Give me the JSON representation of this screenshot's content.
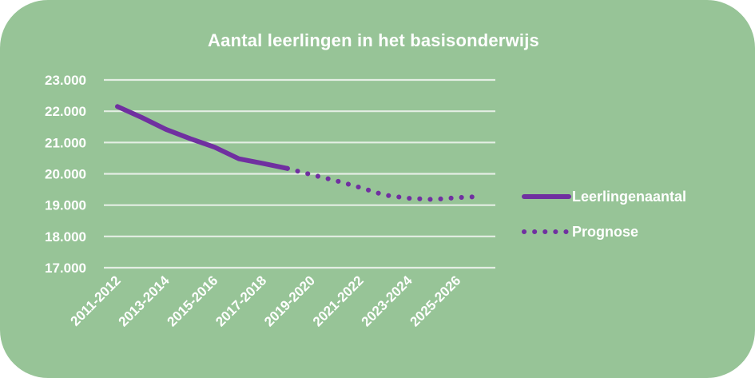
{
  "chart_data": {
    "type": "line",
    "title": "Aantal leerlingen in het basisonderwijs",
    "xlabel": "",
    "ylabel": "",
    "x": [
      "2011-2012",
      "2012-2013",
      "2013-2014",
      "2014-2015",
      "2015-2016",
      "2016-2017",
      "2017-2018",
      "2018-2019",
      "2019-2020",
      "2020-2021",
      "2021-2022",
      "2022-2023",
      "2023-2024",
      "2024-2025",
      "2025-2026",
      "2026-2027"
    ],
    "x_tick_labels": [
      "2011-2012",
      "2013-2014",
      "2015-2016",
      "2017-2018",
      "2019-2020",
      "2021-2022",
      "2023-2024",
      "2025-2026"
    ],
    "y_tick_labels": [
      "23.000",
      "22.000",
      "21.000",
      "20.000",
      "19.000",
      "18.000",
      "17.000"
    ],
    "y_ticks": [
      23000,
      22000,
      21000,
      20000,
      19000,
      18000,
      17000
    ],
    "ylim": [
      17000,
      23000
    ],
    "grid": true,
    "legend_position": "right",
    "series": [
      {
        "name": "Leerlingenaantal",
        "style": "solid",
        "color": "#7030a0",
        "values": [
          22150,
          21800,
          21420,
          21120,
          20850,
          20480,
          20330,
          20170,
          null,
          null,
          null,
          null,
          null,
          null,
          null,
          null
        ]
      },
      {
        "name": "Prognose",
        "style": "dotted",
        "color": "#7030a0",
        "values": [
          null,
          null,
          null,
          null,
          null,
          null,
          null,
          20170,
          19970,
          19780,
          19560,
          19320,
          19220,
          19180,
          19240,
          19280
        ]
      }
    ]
  }
}
